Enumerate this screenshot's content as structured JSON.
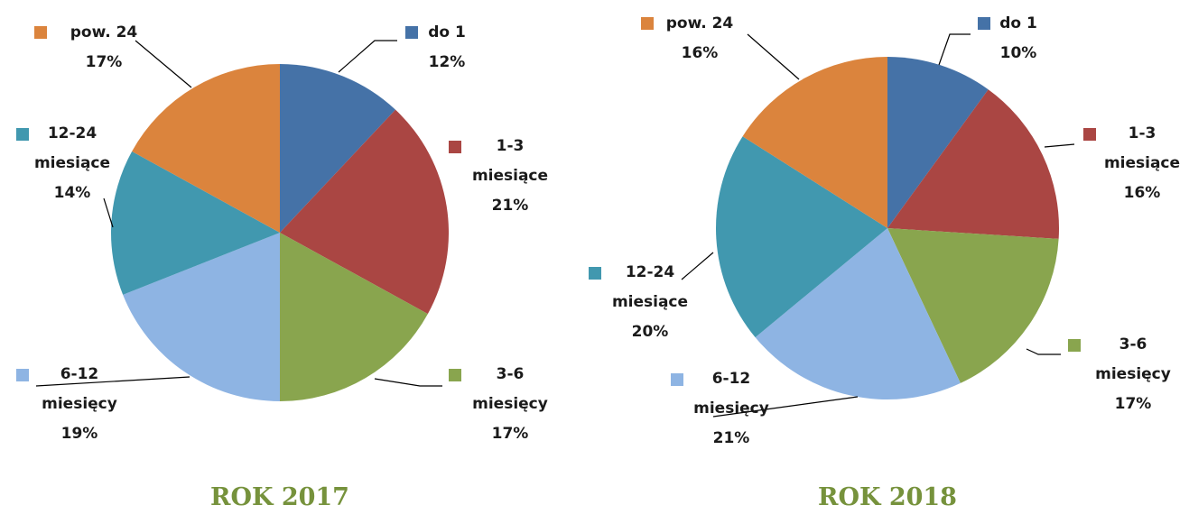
{
  "chart_data": [
    {
      "type": "pie",
      "title": "ROK 2017",
      "categories": [
        "do 1",
        "1-3 miesiące",
        "3-6 miesięcy",
        "6-12 miesięcy",
        "12-24 miesiące",
        "pow. 24"
      ],
      "values": [
        12,
        21,
        17,
        19,
        14,
        17
      ],
      "value_labels": [
        "12%",
        "21%",
        "17%",
        "19%",
        "14%",
        "17%"
      ],
      "colors": [
        "#4572a7",
        "#aa4643",
        "#89a54e",
        "#8eb4e3",
        "#4198af",
        "#db843d"
      ]
    },
    {
      "type": "pie",
      "title": "ROK 2018",
      "categories": [
        "do 1",
        "1-3 miesiące",
        "3-6 miesięcy",
        "6-12 miesięcy",
        "12-24 miesiące",
        "pow. 24"
      ],
      "values": [
        10,
        16,
        17,
        21,
        20,
        16
      ],
      "value_labels": [
        "10%",
        "16%",
        "17%",
        "21%",
        "20%",
        "16%"
      ],
      "colors": [
        "#4572a7",
        "#aa4643",
        "#89a54e",
        "#8eb4e3",
        "#4198af",
        "#db843d"
      ]
    }
  ]
}
